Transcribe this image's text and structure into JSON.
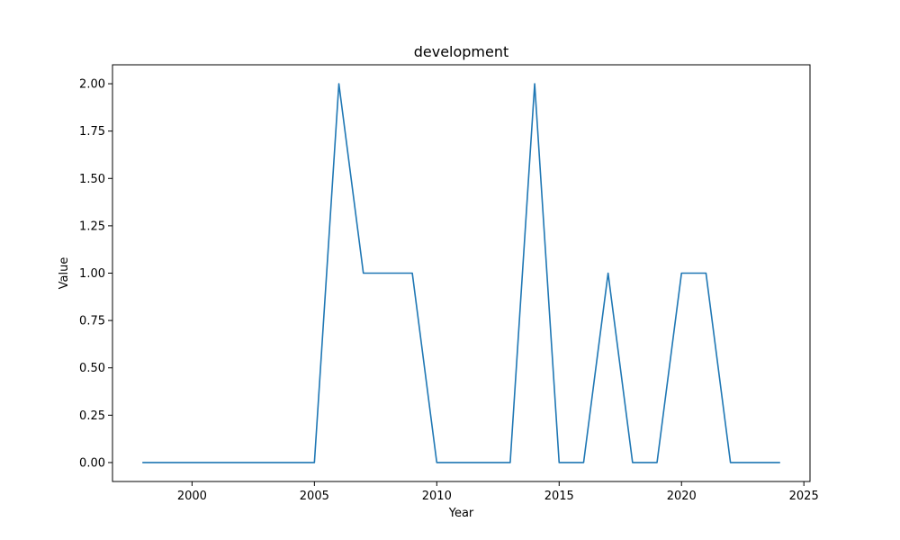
{
  "chart_data": {
    "type": "line",
    "title": "development",
    "xlabel": "Year",
    "ylabel": "Value",
    "xlim": [
      1996.75,
      2025.25
    ],
    "ylim": [
      -0.1,
      2.1
    ],
    "xticks": [
      2000,
      2005,
      2010,
      2015,
      2020,
      2025
    ],
    "yticks": [
      0.0,
      0.25,
      0.5,
      0.75,
      1.0,
      1.25,
      1.5,
      1.75,
      2.0
    ],
    "ytick_labels": [
      "0.00",
      "0.25",
      "0.50",
      "0.75",
      "1.00",
      "1.25",
      "1.50",
      "1.75",
      "2.00"
    ],
    "grid": false,
    "series": [
      {
        "color": "#1f77b4",
        "x": [
          1998,
          1999,
          2000,
          2001,
          2002,
          2003,
          2004,
          2005,
          2006,
          2007,
          2008,
          2009,
          2010,
          2011,
          2012,
          2013,
          2014,
          2015,
          2016,
          2017,
          2018,
          2019,
          2020,
          2021,
          2022,
          2023,
          2024
        ],
        "values": [
          0,
          0,
          0,
          0,
          0,
          0,
          0,
          0,
          2,
          1,
          1,
          1,
          0,
          0,
          0,
          0,
          2,
          0,
          0,
          1,
          0,
          0,
          1,
          1,
          0,
          0,
          0
        ]
      }
    ]
  }
}
